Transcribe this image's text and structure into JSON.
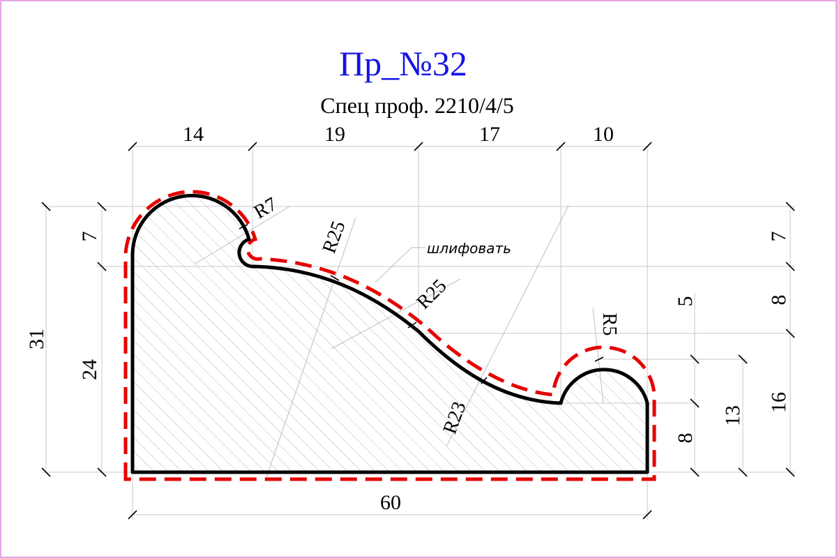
{
  "title": "Пр_№32",
  "subtitle": "Спец проф. 2210/4/5",
  "note": "шлифовать",
  "colors": {
    "title": "#1414e6",
    "outline": "#000000",
    "cut_line": "#e60000",
    "frame": "#e4a8e4",
    "hatch": "#b4b4b4"
  },
  "dimensions": {
    "top": [
      "14",
      "19",
      "17",
      "10"
    ],
    "bottom": "60",
    "left_overall": "31",
    "left_upper": "7",
    "left_lower": "24",
    "right_a": "7",
    "right_b": "8",
    "right_c": "16",
    "inner_5": "5",
    "inner_8": "8",
    "inner_13": "13"
  },
  "radii": [
    "R7",
    "R25",
    "R25",
    "R23",
    "R5"
  ]
}
